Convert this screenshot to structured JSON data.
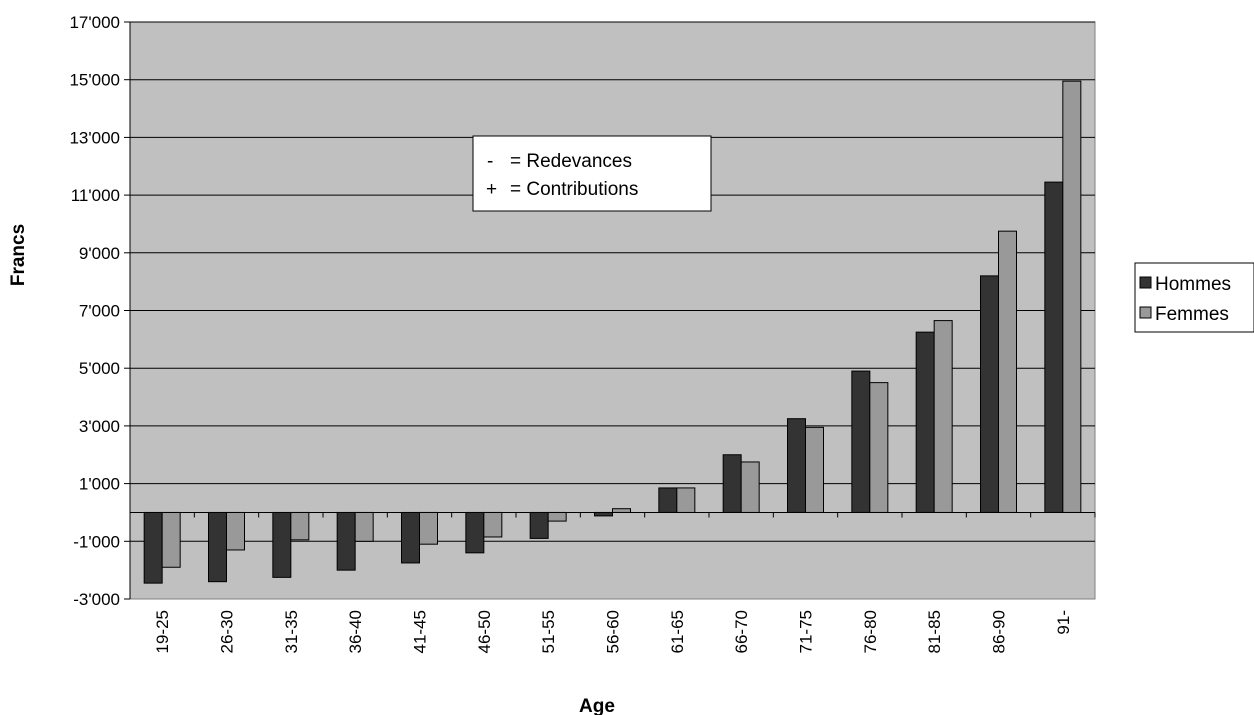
{
  "chart_data": {
    "type": "bar",
    "xlabel": "Age",
    "ylabel": "Francs",
    "ylim": [
      -3000,
      17000
    ],
    "yticks": [
      -3000,
      -1000,
      1000,
      3000,
      5000,
      7000,
      9000,
      11000,
      13000,
      15000,
      17000
    ],
    "ytick_labels": [
      "-3'000",
      "-1'000",
      "1'000",
      "3'000",
      "5'000",
      "7'000",
      "9'000",
      "11'000",
      "13'000",
      "15'000",
      "17'000"
    ],
    "grid": true,
    "legend": "right",
    "categories": [
      "19-25",
      "26-30",
      "31-35",
      "36-40",
      "41-45",
      "46-50",
      "51-55",
      "56-60",
      "61-65",
      "66-70",
      "71-75",
      "76-80",
      "81-85",
      "86-90",
      "91-"
    ],
    "series": [
      {
        "name": "Hommes",
        "color": "#333333",
        "values": [
          -2450,
          -2400,
          -2250,
          -2000,
          -1750,
          -1400,
          -900,
          -120,
          850,
          2000,
          3250,
          4900,
          6250,
          8200,
          11450
        ]
      },
      {
        "name": "Femmes",
        "color": "#999999",
        "values": [
          -1900,
          -1300,
          -950,
          -1000,
          -1100,
          -850,
          -300,
          130,
          850,
          1750,
          2950,
          4500,
          6650,
          9750,
          14950
        ]
      }
    ],
    "annotation": [
      {
        "sign": "-",
        "text": "=  Redevances"
      },
      {
        "sign": "+",
        "text": "=  Contributions"
      }
    ],
    "colors": {
      "plot_background": "#c0c0c0",
      "gridline": "#000000"
    }
  }
}
